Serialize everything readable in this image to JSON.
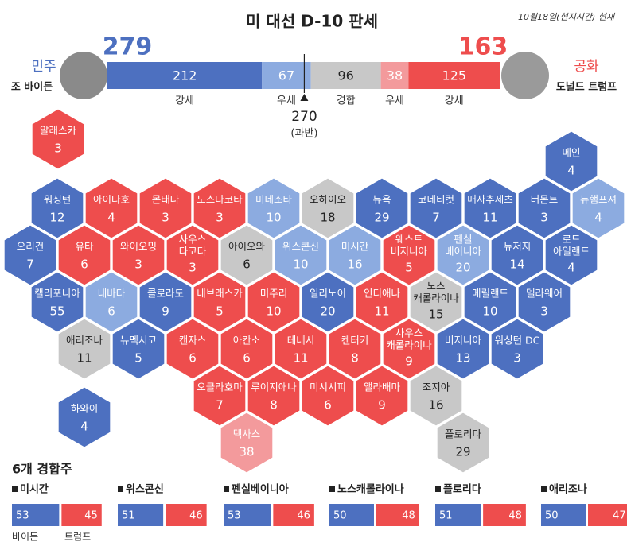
{
  "header": {
    "title": "미 대선 D-10 판세",
    "date": "10월18일(현지시간) 현재"
  },
  "candidates": [
    {
      "party": "민주",
      "name": "조 바이든",
      "electoral_votes": 279,
      "color": "#4d70c0"
    },
    {
      "party": "공화",
      "name": "도널드 트럼프",
      "electoral_votes": 163,
      "color": "#ee4d4d"
    }
  ],
  "electoral_bar": {
    "segments": [
      {
        "label": "강세",
        "value": 212,
        "color": "#4d70c0"
      },
      {
        "label": "우세",
        "value": 67,
        "color": "#8cabe0"
      },
      {
        "label": "경합",
        "value": 96,
        "color": "#c8c8c8"
      },
      {
        "label": "우세",
        "value": 38,
        "color": "#f39a9c"
      },
      {
        "label": "강세",
        "value": 125,
        "color": "#ee4d4d"
      }
    ],
    "majority": {
      "value": 270,
      "label": "(과반)"
    }
  },
  "states": [
    {
      "name": [
        "알래스카"
      ],
      "votes": 3,
      "color": "#ee4d4d"
    },
    {
      "name": [
        "메인"
      ],
      "votes": 4,
      "color": "#4d70c0"
    },
    {
      "name": [
        "워싱턴"
      ],
      "votes": 12,
      "color": "#4d70c0"
    },
    {
      "name": [
        "아이다호"
      ],
      "votes": 4,
      "color": "#ee4d4d"
    },
    {
      "name": [
        "몬태나"
      ],
      "votes": 3,
      "color": "#ee4d4d"
    },
    {
      "name": [
        "노스다코타"
      ],
      "votes": 3,
      "color": "#ee4d4d"
    },
    {
      "name": [
        "미네소타"
      ],
      "votes": 10,
      "color": "#8cabe0"
    },
    {
      "name": [
        "오하이오"
      ],
      "votes": 18,
      "color": "#c8c8c8"
    },
    {
      "name": [
        "뉴욕"
      ],
      "votes": 29,
      "color": "#4d70c0"
    },
    {
      "name": [
        "코네티컷"
      ],
      "votes": 7,
      "color": "#4d70c0"
    },
    {
      "name": [
        "매사추세츠"
      ],
      "votes": 11,
      "color": "#4d70c0"
    },
    {
      "name": [
        "버몬트"
      ],
      "votes": 3,
      "color": "#4d70c0"
    },
    {
      "name": [
        "뉴햄프셔"
      ],
      "votes": 4,
      "color": "#8cabe0"
    },
    {
      "name": [
        "오리건"
      ],
      "votes": 7,
      "color": "#4d70c0"
    },
    {
      "name": [
        "유타"
      ],
      "votes": 6,
      "color": "#ee4d4d"
    },
    {
      "name": [
        "와이오밍"
      ],
      "votes": 3,
      "color": "#ee4d4d"
    },
    {
      "name": [
        "사우스",
        "다코타"
      ],
      "votes": 3,
      "color": "#ee4d4d"
    },
    {
      "name": [
        "아이오와"
      ],
      "votes": 6,
      "color": "#c8c8c8"
    },
    {
      "name": [
        "위스콘신"
      ],
      "votes": 10,
      "color": "#8cabe0"
    },
    {
      "name": [
        "미시간"
      ],
      "votes": 16,
      "color": "#8cabe0"
    },
    {
      "name": [
        "웨스트",
        "버지니아"
      ],
      "votes": 5,
      "color": "#ee4d4d"
    },
    {
      "name": [
        "펜실",
        "베이니아"
      ],
      "votes": 20,
      "color": "#8cabe0"
    },
    {
      "name": [
        "뉴저지"
      ],
      "votes": 14,
      "color": "#4d70c0"
    },
    {
      "name": [
        "로드",
        "아일랜드"
      ],
      "votes": 4,
      "color": "#4d70c0"
    },
    {
      "name": [
        "캘리포니아"
      ],
      "votes": 55,
      "color": "#4d70c0"
    },
    {
      "name": [
        "네바다"
      ],
      "votes": 6,
      "color": "#8cabe0"
    },
    {
      "name": [
        "콜로라도"
      ],
      "votes": 9,
      "color": "#4d70c0"
    },
    {
      "name": [
        "네브래스카"
      ],
      "votes": 5,
      "color": "#ee4d4d"
    },
    {
      "name": [
        "미주리"
      ],
      "votes": 10,
      "color": "#ee4d4d"
    },
    {
      "name": [
        "일리노이"
      ],
      "votes": 20,
      "color": "#4d70c0"
    },
    {
      "name": [
        "인디애나"
      ],
      "votes": 11,
      "color": "#ee4d4d"
    },
    {
      "name": [
        "노스",
        "캐롤라이나"
      ],
      "votes": 15,
      "color": "#c8c8c8"
    },
    {
      "name": [
        "메릴랜드"
      ],
      "votes": 10,
      "color": "#4d70c0"
    },
    {
      "name": [
        "델라웨어"
      ],
      "votes": 3,
      "color": "#4d70c0"
    },
    {
      "name": [
        "애리조나"
      ],
      "votes": 11,
      "color": "#c8c8c8"
    },
    {
      "name": [
        "뉴멕시코"
      ],
      "votes": 5,
      "color": "#4d70c0"
    },
    {
      "name": [
        "캔자스"
      ],
      "votes": 6,
      "color": "#ee4d4d"
    },
    {
      "name": [
        "아칸소"
      ],
      "votes": 6,
      "color": "#ee4d4d"
    },
    {
      "name": [
        "테네시"
      ],
      "votes": 11,
      "color": "#ee4d4d"
    },
    {
      "name": [
        "켄터키"
      ],
      "votes": 8,
      "color": "#ee4d4d"
    },
    {
      "name": [
        "사우스",
        "캐롤라이나"
      ],
      "votes": 9,
      "color": "#ee4d4d"
    },
    {
      "name": [
        "버지니아"
      ],
      "votes": 13,
      "color": "#4d70c0"
    },
    {
      "name": [
        "워싱턴 DC"
      ],
      "votes": 3,
      "color": "#4d70c0"
    },
    {
      "name": [
        "오클라호마"
      ],
      "votes": 7,
      "color": "#ee4d4d"
    },
    {
      "name": [
        "루이지애나"
      ],
      "votes": 8,
      "color": "#ee4d4d"
    },
    {
      "name": [
        "미시시피"
      ],
      "votes": 6,
      "color": "#ee4d4d"
    },
    {
      "name": [
        "앨라배마"
      ],
      "votes": 9,
      "color": "#ee4d4d"
    },
    {
      "name": [
        "조지아"
      ],
      "votes": 16,
      "color": "#c8c8c8"
    },
    {
      "name": [
        "하와이"
      ],
      "votes": 4,
      "color": "#4d70c0"
    },
    {
      "name": [
        "텍사스"
      ],
      "votes": 38,
      "color": "#f39a9c"
    },
    {
      "name": [
        "플로리다"
      ],
      "votes": 29,
      "color": "#c8c8c8"
    }
  ],
  "swing_states": {
    "title": "6개 경합주",
    "legend": [
      {
        "name": "바이든",
        "color": "#4d70c0"
      },
      {
        "name": "트럼프",
        "color": "#ee4d4d"
      }
    ],
    "states": [
      {
        "name": "미시간",
        "biden": 53,
        "trump": 45
      },
      {
        "name": "위스콘신",
        "biden": 51,
        "trump": 46
      },
      {
        "name": "펜실베이니아",
        "biden": 53,
        "trump": 46
      },
      {
        "name": "노스캐롤라이나",
        "biden": 50,
        "trump": 48
      },
      {
        "name": "플로리다",
        "biden": 51,
        "trump": 48
      },
      {
        "name": "애리조나",
        "biden": 50,
        "trump": 47
      }
    ]
  }
}
